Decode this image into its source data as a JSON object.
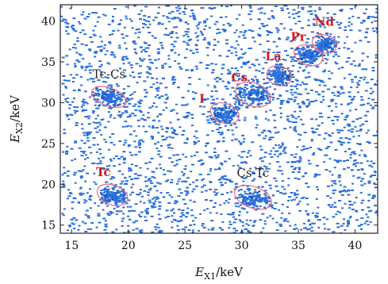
{
  "chart_data": {
    "type": "heatmap",
    "title": "",
    "xlabel": {
      "main": "E",
      "sub": "X1",
      "unit": "/keV"
    },
    "ylabel": {
      "main": "E",
      "sub": "X2",
      "unit": "/keV"
    },
    "xlim": [
      14,
      42
    ],
    "ylim": [
      14,
      42
    ],
    "x_ticks": [
      15,
      20,
      25,
      30,
      35,
      40
    ],
    "y_ticks": [
      15,
      20,
      25,
      30,
      35,
      40
    ],
    "x_tick_labels": [
      "15",
      "20",
      "25",
      "30",
      "35",
      "40"
    ],
    "y_tick_labels": [
      "15",
      "20",
      "25",
      "30",
      "35",
      "40"
    ],
    "grid": false,
    "point_color": "#2a6fdb",
    "background_density": 2400,
    "clusters": [
      {
        "label": "Nd",
        "label_style": "red",
        "x": 37.3,
        "y": 37.2,
        "rx": 1.1,
        "ry": 1.1,
        "label_x": 37.3,
        "label_y": 39.4
      },
      {
        "label": "Pr",
        "label_style": "red",
        "x": 35.9,
        "y": 35.8,
        "rx": 1.3,
        "ry": 1.2,
        "label_x": 35.0,
        "label_y": 37.6
      },
      {
        "label": "La",
        "label_style": "red",
        "x": 33.3,
        "y": 33.3,
        "rx": 1.1,
        "ry": 1.2,
        "label_x": 32.8,
        "label_y": 35.2
      },
      {
        "label": "Cs",
        "label_style": "red",
        "x": 31.0,
        "y": 31.0,
        "rx": 1.6,
        "ry": 1.4,
        "label_x": 29.8,
        "label_y": 32.6
      },
      {
        "label": "I",
        "label_style": "red",
        "x": 28.5,
        "y": 28.7,
        "rx": 1.3,
        "ry": 1.2,
        "label_x": 26.5,
        "label_y": 30.0
      },
      {
        "label": "Tc-Cs",
        "label_style": "dark",
        "x": 18.3,
        "y": 30.7,
        "rx": 1.6,
        "ry": 1.1,
        "label_x": 18.3,
        "label_y": 33.0
      },
      {
        "label": "Tc",
        "label_style": "red",
        "x": 18.6,
        "y": 18.7,
        "rx": 1.4,
        "ry": 1.2,
        "label_x": 17.8,
        "label_y": 21.0
      },
      {
        "label": "Cs-Tc",
        "label_style": "dark",
        "x": 31.0,
        "y": 18.4,
        "rx": 1.7,
        "ry": 1.3,
        "label_x": 31.0,
        "label_y": 20.9
      }
    ],
    "ellipse_color": "#f06b7a"
  }
}
